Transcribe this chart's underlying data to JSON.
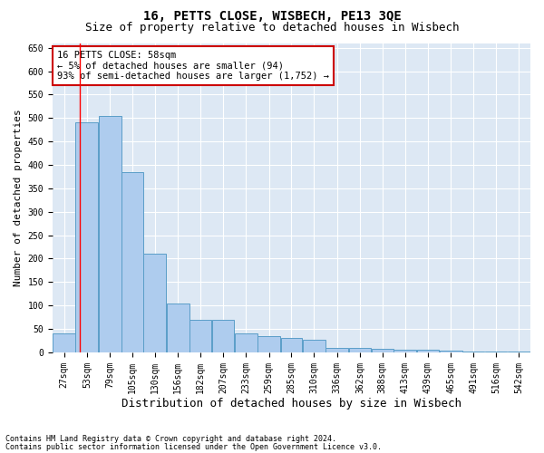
{
  "title": "16, PETTS CLOSE, WISBECH, PE13 3QE",
  "subtitle": "Size of property relative to detached houses in Wisbech",
  "xlabel": "Distribution of detached houses by size in Wisbech",
  "ylabel": "Number of detached properties",
  "footnote1": "Contains HM Land Registry data © Crown copyright and database right 2024.",
  "footnote2": "Contains public sector information licensed under the Open Government Licence v3.0.",
  "annotation_title": "16 PETTS CLOSE: 58sqm",
  "annotation_line1": "← 5% of detached houses are smaller (94)",
  "annotation_line2": "93% of semi-detached houses are larger (1,752) →",
  "property_size": 58,
  "bar_left_edges": [
    27,
    53,
    79,
    105,
    130,
    156,
    182,
    207,
    233,
    259,
    285,
    310,
    336,
    362,
    388,
    413,
    439,
    465,
    491,
    516,
    542
  ],
  "bar_heights": [
    40,
    490,
    505,
    385,
    210,
    105,
    70,
    70,
    40,
    35,
    30,
    27,
    10,
    10,
    8,
    5,
    5,
    3,
    1,
    1,
    1
  ],
  "bar_color": "#aeccee",
  "bar_edge_color": "#5a9ec8",
  "red_line_x": 58,
  "ylim": [
    0,
    660
  ],
  "yticks": [
    0,
    50,
    100,
    150,
    200,
    250,
    300,
    350,
    400,
    450,
    500,
    550,
    600,
    650
  ],
  "background_color": "#dde8f4",
  "annotation_box_facecolor": "#ffffff",
  "annotation_box_edgecolor": "#cc0000",
  "title_fontsize": 10,
  "subtitle_fontsize": 9,
  "ylabel_fontsize": 8,
  "xlabel_fontsize": 9,
  "tick_fontsize": 7,
  "annotation_fontsize": 7.5,
  "footnote_fontsize": 6
}
